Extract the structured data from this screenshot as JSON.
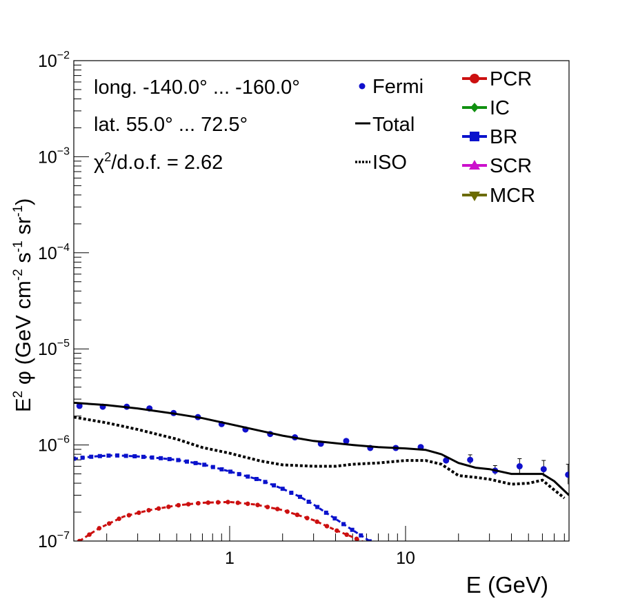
{
  "chart_data": {
    "type": "line",
    "xlabel": "E (GeV)",
    "ylabel_parts": {
      "base": "E",
      "sup2": "2",
      "phi": " φ (GeV cm",
      "sup_m2": "-2",
      "s": " s",
      "sup_m1a": "-1",
      "sr": " sr",
      "sup_m1b": "-1",
      "close": ")"
    },
    "x_scale": "log",
    "y_scale": "log",
    "xlim": [
      0.13,
      85
    ],
    "ylim": [
      1e-07,
      0.01
    ],
    "x_ticks": [
      {
        "value": 1,
        "label": "1"
      },
      {
        "value": 10,
        "label": "10"
      }
    ],
    "y_ticks": [
      {
        "value": 1e-07,
        "base": "10",
        "exp": "−7"
      },
      {
        "value": 1e-06,
        "base": "10",
        "exp": "−6"
      },
      {
        "value": 1e-05,
        "base": "10",
        "exp": "−5"
      },
      {
        "value": 0.0001,
        "base": "10",
        "exp": "−4"
      },
      {
        "value": 0.001,
        "base": "10",
        "exp": "−3"
      },
      {
        "value": 0.01,
        "base": "10",
        "exp": "−2"
      }
    ],
    "annotations": {
      "longitude": "long. -140.0° ... -160.0°",
      "latitude": "lat. 55.0° ... 72.5°",
      "chi_symbol": "χ",
      "chi_sup": "2",
      "chi_rest": "/d.o.f. = 2.62"
    },
    "legend_left": [
      {
        "name": "Fermi",
        "style": "dot",
        "color": "#1010cc"
      },
      {
        "name": "Total",
        "style": "solid",
        "color": "#000000"
      },
      {
        "name": "ISO",
        "style": "dotted",
        "color": "#000000"
      }
    ],
    "legend_right": [
      {
        "name": "PCR",
        "marker": "circle",
        "color": "#cc1010"
      },
      {
        "name": "IC",
        "marker": "diamond",
        "color": "#109010"
      },
      {
        "name": "BR",
        "marker": "square",
        "color": "#0a12cc"
      },
      {
        "name": "SCR",
        "marker": "triangle-up",
        "color": "#cc10cc"
      },
      {
        "name": "MCR",
        "marker": "triangle-down",
        "color": "#6b6b00"
      }
    ],
    "series": [
      {
        "name": "Fermi",
        "kind": "points",
        "color": "#1010cc",
        "x": [
          0.14,
          0.19,
          0.26,
          0.35,
          0.48,
          0.66,
          0.9,
          1.23,
          1.7,
          2.35,
          3.3,
          4.6,
          6.3,
          8.8,
          12.2,
          17.0,
          23.3,
          32.3,
          44.5,
          61.0,
          84.0
        ],
        "y": [
          2.55e-06,
          2.5e-06,
          2.5e-06,
          2.4e-06,
          2.15e-06,
          1.95e-06,
          1.65e-06,
          1.45e-06,
          1.3e-06,
          1.2e-06,
          1.03e-06,
          1.1e-06,
          9.3e-07,
          9.3e-07,
          9.5e-07,
          6.9e-07,
          7e-07,
          5.4e-07,
          6e-07,
          5.6e-07,
          4.9e-07
        ],
        "err_hi": [
          0,
          0,
          0,
          0,
          0,
          0,
          0,
          0,
          0,
          0,
          0,
          0,
          0,
          0,
          0,
          6e-08,
          9e-08,
          7e-08,
          1.2e-07,
          1.3e-07,
          1.4e-07
        ],
        "err_lo": [
          0,
          0,
          0,
          0,
          0,
          0,
          0,
          0,
          0,
          0,
          0,
          0,
          0,
          0,
          0,
          5e-08,
          7e-08,
          5e-08,
          9e-08,
          9e-08,
          1e-07
        ]
      },
      {
        "name": "Total",
        "kind": "solid",
        "color": "#000000",
        "x": [
          0.13,
          0.2,
          0.3,
          0.5,
          0.7,
          1.0,
          1.5,
          2.0,
          3.0,
          5.0,
          7.0,
          10,
          13,
          16,
          20,
          25,
          30,
          40,
          50,
          60,
          70,
          85
        ],
        "y": [
          2.75e-06,
          2.6e-06,
          2.4e-06,
          2.1e-06,
          1.9e-06,
          1.65e-06,
          1.4e-06,
          1.25e-06,
          1.1e-06,
          1e-06,
          9.5e-07,
          9.2e-07,
          8.9e-07,
          8e-07,
          6.5e-07,
          5.8e-07,
          5.6e-07,
          5e-07,
          5e-07,
          5e-07,
          4.2e-07,
          3e-07
        ]
      },
      {
        "name": "ISO",
        "kind": "dotted",
        "color": "#000000",
        "x": [
          0.13,
          0.2,
          0.3,
          0.5,
          0.7,
          1.0,
          1.5,
          2.0,
          3.0,
          4.0,
          5.0,
          7.0,
          10,
          13,
          16,
          20,
          25,
          30,
          40,
          50,
          60,
          70,
          80
        ],
        "y": [
          1.95e-06,
          1.7e-06,
          1.45e-06,
          1.15e-06,
          9.4e-07,
          8.2e-07,
          6.8e-07,
          6.2e-07,
          6e-07,
          6e-07,
          6.3e-07,
          6.5e-07,
          6.9e-07,
          6.9e-07,
          6.3e-07,
          4.8e-07,
          4.6e-07,
          4.4e-07,
          3.9e-07,
          4e-07,
          4.3e-07,
          3.4e-07,
          2.8e-07
        ]
      },
      {
        "name": "BR",
        "kind": "dashed-markers",
        "color": "#0a12cc",
        "marker": "square",
        "x": [
          0.13,
          0.17,
          0.22,
          0.3,
          0.4,
          0.5,
          0.7,
          1.0,
          1.5,
          2.0,
          2.5,
          3.0,
          4.0,
          5.0,
          6.0,
          7.0
        ],
        "y": [
          7.2e-07,
          7.6e-07,
          7.8e-07,
          7.6e-07,
          7.3e-07,
          7e-07,
          6.3e-07,
          5.3e-07,
          4.3e-07,
          3.5e-07,
          2.9e-07,
          2.4e-07,
          1.7e-07,
          1.3e-07,
          1.05e-07,
          8.5e-08
        ]
      },
      {
        "name": "PCR",
        "kind": "dashed-markers",
        "color": "#cc1010",
        "marker": "circle",
        "x": [
          0.14,
          0.18,
          0.25,
          0.35,
          0.5,
          0.7,
          1.0,
          1.4,
          2.0,
          3.0,
          4.0,
          5.0,
          6.0
        ],
        "y": [
          1e-07,
          1.35e-07,
          1.8e-07,
          2.1e-07,
          2.35e-07,
          2.5e-07,
          2.55e-07,
          2.4e-07,
          2.1e-07,
          1.65e-07,
          1.3e-07,
          1.1e-07,
          9.5e-08
        ]
      }
    ]
  }
}
